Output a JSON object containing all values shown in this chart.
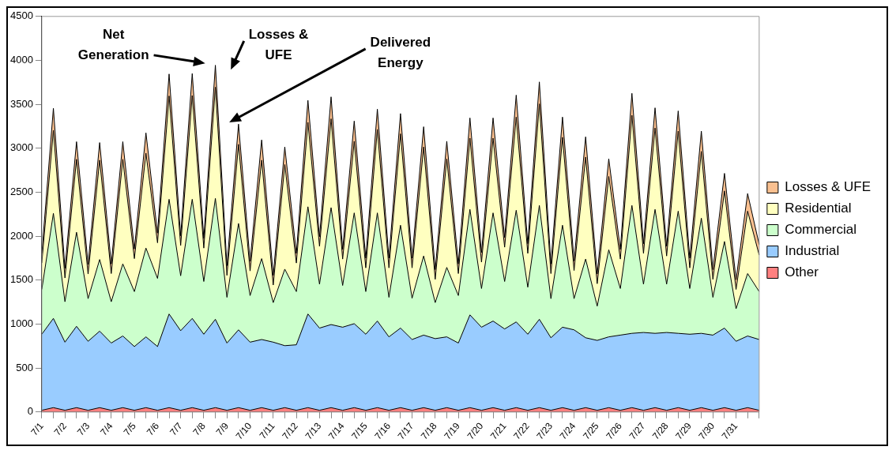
{
  "chart_data": {
    "type": "area",
    "stacked": true,
    "grid": false,
    "legend": "right",
    "categories": [
      "7/1",
      null,
      "7/2",
      null,
      "7/3",
      null,
      "7/4",
      null,
      "7/5",
      null,
      "7/6",
      null,
      "7/7",
      null,
      "7/8",
      null,
      "7/9",
      null,
      "7/10",
      null,
      "7/11",
      null,
      "7/12",
      null,
      "7/13",
      null,
      "7/14",
      null,
      "7/15",
      null,
      "7/16",
      null,
      "7/17",
      null,
      "7/18",
      null,
      "7/19",
      null,
      "7/20",
      null,
      "7/21",
      null,
      "7/22",
      null,
      "7/23",
      null,
      "7/24",
      null,
      "7/25",
      null,
      "7/26",
      null,
      "7/27",
      null,
      "7/28",
      null,
      "7/29",
      null,
      "7/30",
      null,
      "7/31",
      null,
      null
    ],
    "ylim": [
      0,
      4500
    ],
    "yticks": [
      0,
      500,
      1000,
      1500,
      2000,
      2500,
      3000,
      3500,
      4000,
      4500
    ],
    "series": [
      {
        "name": "Other",
        "color": "#ff8080",
        "values": [
          20,
          50,
          20,
          50,
          20,
          50,
          20,
          50,
          20,
          50,
          20,
          50,
          20,
          50,
          20,
          50,
          20,
          50,
          20,
          50,
          20,
          50,
          20,
          50,
          20,
          50,
          20,
          50,
          20,
          50,
          20,
          50,
          20,
          50,
          20,
          50,
          20,
          50,
          20,
          50,
          20,
          50,
          20,
          50,
          20,
          50,
          20,
          50,
          20,
          50,
          20,
          50,
          20,
          50,
          20,
          50,
          20,
          50,
          20,
          50,
          20,
          50,
          20
        ]
      },
      {
        "name": "Industrial",
        "color": "#99ccff",
        "values": [
          865,
          1015,
          775,
          925,
          785,
          870,
          765,
          815,
          725,
          805,
          725,
          1065,
          905,
          1015,
          865,
          1005,
          765,
          885,
          775,
          775,
          775,
          705,
          745,
          1065,
          935,
          945,
          945,
          955,
          865,
          985,
          835,
          905,
          805,
          825,
          815,
          805,
          765,
          1055,
          945,
          985,
          925,
          975,
          865,
          1005,
          825,
          915,
          915,
          795,
          795,
          805,
          855,
          845,
          885,
          845,
          885,
          845,
          865,
          845,
          855,
          905,
          785,
          815,
          805
        ]
      },
      {
        "name": "Commercial",
        "color": "#ccffcc",
        "values": [
          510,
          1195,
          460,
          1070,
          485,
          815,
          470,
          820,
          625,
          1010,
          775,
          1305,
          625,
          1355,
          600,
          1375,
          520,
          1210,
          530,
          920,
          450,
          870,
          605,
          1220,
          500,
          1330,
          475,
          1260,
          485,
          1230,
          450,
          1170,
          470,
          900,
          410,
          790,
          540,
          1200,
          440,
          1230,
          540,
          1270,
          535,
          1295,
          445,
          1160,
          355,
          895,
          390,
          990,
          530,
          1455,
          550,
          1410,
          550,
          1390,
          520,
          1310,
          430,
          985,
          370,
          710,
          545
        ]
      },
      {
        "name": "Residential",
        "color": "#ffffc0",
        "values": [
          300,
          945,
          270,
          830,
          280,
          1130,
          320,
          1190,
          375,
          1080,
          405,
          1175,
          345,
          1180,
          380,
          1265,
          250,
          900,
          280,
          1120,
          200,
          1190,
          325,
          960,
          430,
          1010,
          300,
          815,
          270,
          950,
          335,
          1040,
          345,
          1240,
          265,
          1235,
          250,
          810,
          300,
          850,
          390,
          1060,
          385,
          1155,
          285,
          1000,
          320,
          1160,
          255,
          835,
          335,
          1025,
          350,
          925,
          320,
          910,
          235,
          760,
          205,
          575,
          220,
          710,
          415
        ]
      },
      {
        "name": "Losses & UFE",
        "color": "#fac090",
        "values": [
          110,
          250,
          110,
          200,
          110,
          200,
          110,
          200,
          110,
          230,
          110,
          250,
          110,
          250,
          110,
          250,
          110,
          230,
          110,
          230,
          110,
          200,
          110,
          250,
          110,
          250,
          110,
          230,
          110,
          230,
          110,
          230,
          110,
          230,
          110,
          200,
          110,
          230,
          110,
          230,
          110,
          250,
          110,
          250,
          110,
          230,
          110,
          230,
          110,
          200,
          110,
          250,
          110,
          230,
          110,
          230,
          110,
          230,
          110,
          200,
          110,
          200,
          120
        ]
      }
    ],
    "annotations": [
      "Net Generation",
      "Losses & UFE",
      "Delivered Energy"
    ]
  }
}
